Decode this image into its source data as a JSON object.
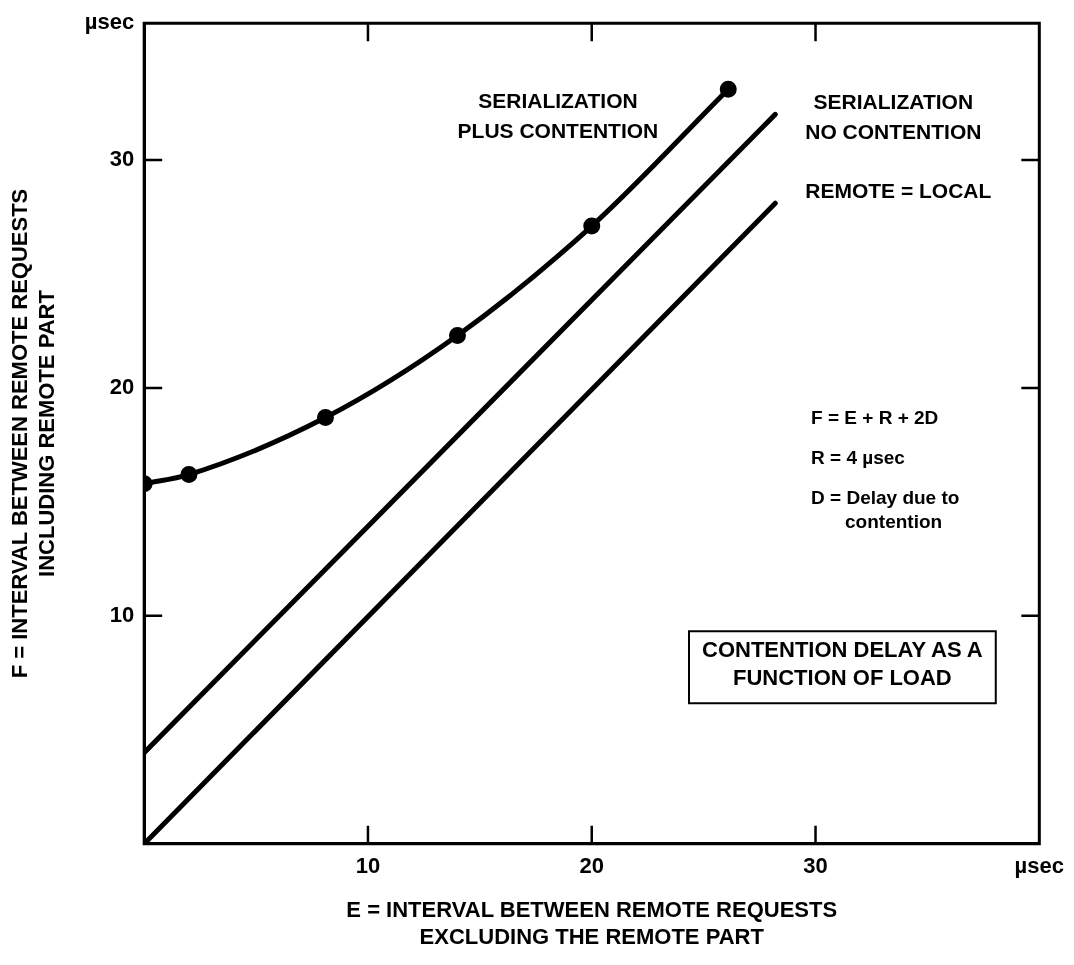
{
  "chart_data": {
    "type": "line",
    "title": "CONTENTION DELAY AS A FUNCTION OF LOAD",
    "xlabel": "E = INTERVAL BETWEEN REMOTE REQUESTS EXCLUDING THE REMOTE PART",
    "ylabel": "F = INTERVAL BETWEEN REMOTE REQUESTS INCLUDING REMOTE PART",
    "xlim": [
      0,
      40
    ],
    "xticks": [
      10,
      20,
      30,
      {
        "value": 40,
        "label": "µsec"
      }
    ],
    "ylim": [
      0,
      36
    ],
    "yticks": [
      10,
      20,
      30,
      {
        "value": 36,
        "label": "µsec"
      }
    ],
    "grid": false,
    "legend": false,
    "series": [
      {
        "name": "SERIALIZATION PLUS CONTENTION",
        "color": "#000000",
        "marker": "circle",
        "x": [
          0,
          2,
          8.1,
          14,
          20,
          26.1
        ],
        "values": [
          15.8,
          16.2,
          18.7,
          22.3,
          27.1,
          33.1
        ]
      },
      {
        "name": "SERIALIZATION NO CONTENTION",
        "color": "#000000",
        "marker": "none",
        "x": [
          0,
          28.2
        ],
        "values": [
          4,
          32
        ]
      },
      {
        "name": "REMOTE = LOCAL",
        "color": "#000000",
        "marker": "none",
        "x": [
          0,
          28.2
        ],
        "values": [
          0,
          28.1
        ]
      }
    ],
    "annotations": [
      "F = E + R + 2D",
      "R = 4 µsec",
      "D = Delay due to contention"
    ]
  }
}
